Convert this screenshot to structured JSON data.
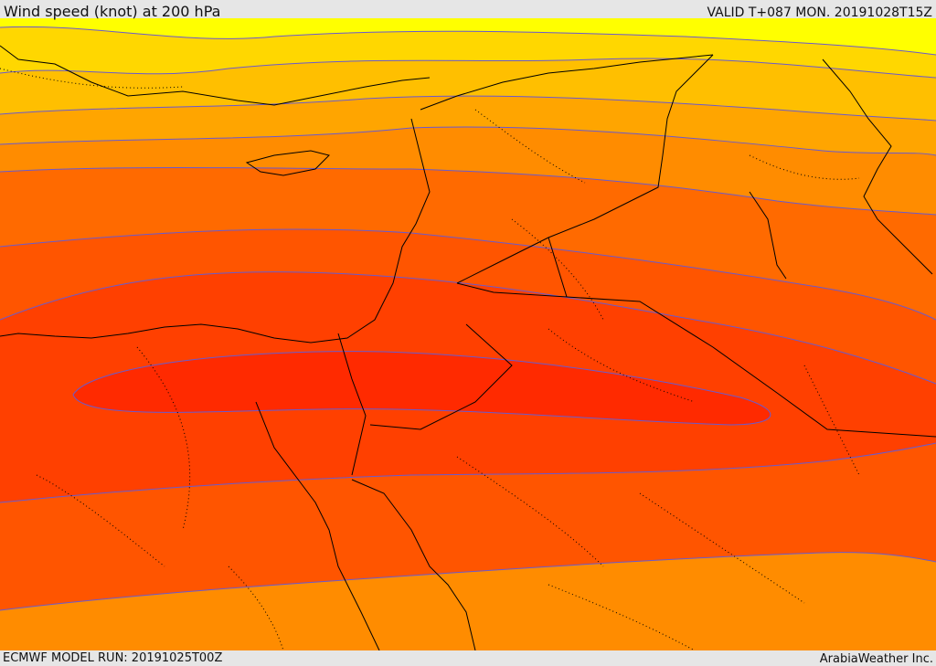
{
  "header": {
    "title": "Wind speed (knot) at 200 hPa",
    "valid": "VALID T+087 MON. 20191028T15Z"
  },
  "footer": {
    "model_run": "ECMWF MODEL RUN: 20191025T00Z",
    "credit": "ArabiaWeather Inc."
  },
  "map": {
    "field": "wind-speed-200hPa",
    "color_bands": [
      "#ffff00",
      "#ffd700",
      "#ffbf00",
      "#ffa500",
      "#ff8c00",
      "#ff6a00",
      "#ff5500",
      "#ff4000",
      "#ff2a00",
      "#ff0000"
    ],
    "contour_color": "#6a5acd",
    "border_color": "#000000",
    "admin_line_style": "dotted"
  }
}
